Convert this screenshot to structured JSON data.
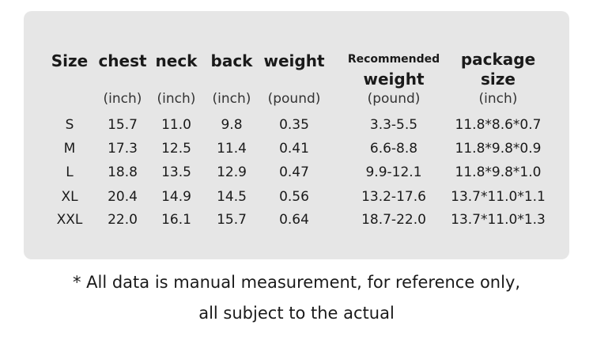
{
  "table": {
    "columns": [
      {
        "header": [
          "Size"
        ]
      },
      {
        "header": [
          "chest"
        ],
        "unit": "(inch)"
      },
      {
        "header": [
          "neck"
        ],
        "unit": "(inch)"
      },
      {
        "header": [
          "back"
        ],
        "unit": "(inch)"
      },
      {
        "header": [
          "weight"
        ],
        "unit": "(pound)"
      },
      {
        "header": [
          "Recommended",
          "weight"
        ],
        "unit": "(pound)"
      },
      {
        "header": [
          "package",
          "size"
        ],
        "unit": "(inch)"
      }
    ],
    "rows": [
      [
        "S",
        "15.7",
        "11.0",
        "9.8",
        "0.35",
        "3.3-5.5",
        "11.8*8.6*0.7"
      ],
      [
        "M",
        "17.3",
        "12.5",
        "11.4",
        "0.41",
        "6.6-8.8",
        "11.8*9.8*0.9"
      ],
      [
        "L",
        "18.8",
        "13.5",
        "12.9",
        "0.47",
        "9.9-12.1",
        "11.8*9.8*1.0"
      ],
      [
        "XL",
        "20.4",
        "14.9",
        "14.5",
        "0.56",
        "13.2-17.6",
        "13.7*11.0*1.1"
      ],
      [
        "XXL",
        "22.0",
        "16.1",
        "15.7",
        "0.64",
        "18.7-22.0",
        "13.7*11.0*1.3"
      ]
    ]
  },
  "footnote": [
    "* All data is manual measurement, for reference only,",
    "all subject to the actual"
  ]
}
